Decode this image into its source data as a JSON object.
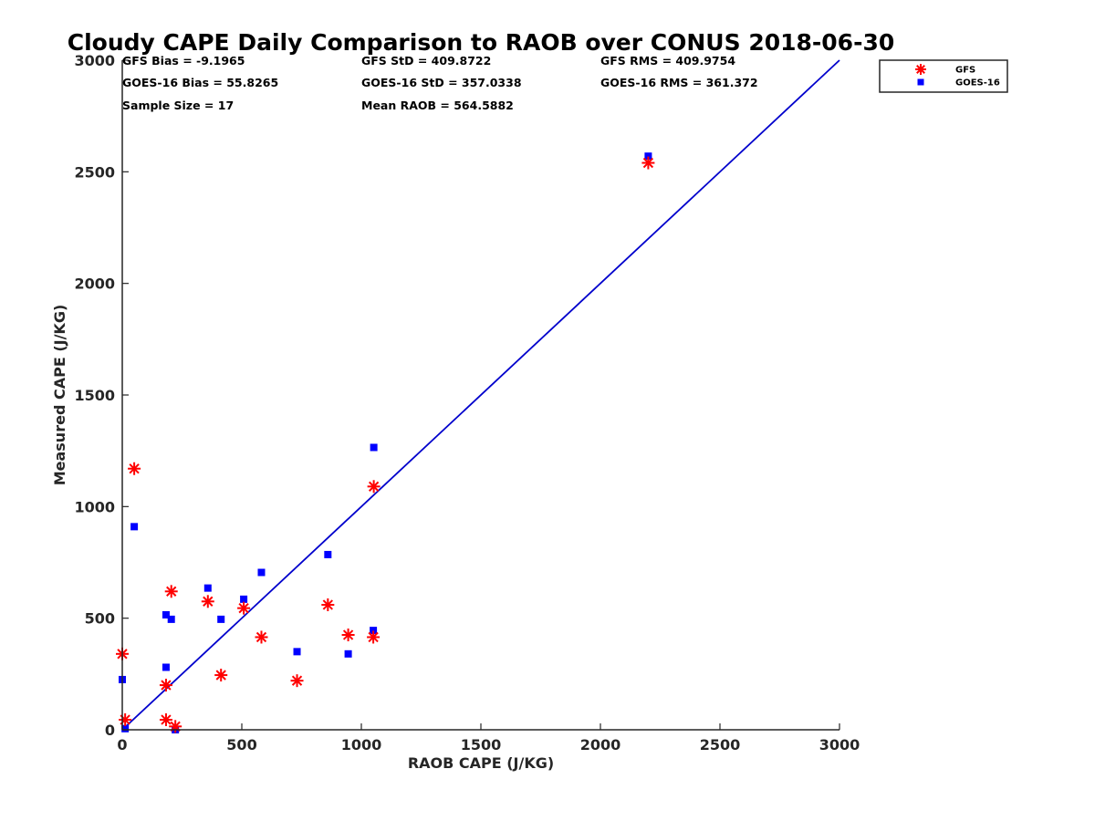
{
  "chart_data": {
    "type": "scatter",
    "title": "Cloudy CAPE Daily Comparison to RAOB over CONUS 2018-06-30",
    "xlabel": "RAOB CAPE (J/KG)",
    "ylabel": "Measured CAPE (J/KG)",
    "xlim": [
      0,
      3000
    ],
    "ylim": [
      0,
      3000
    ],
    "xticks": [
      "0",
      "500",
      "1000",
      "1500",
      "2000",
      "2500",
      "3000"
    ],
    "yticks": [
      "0",
      "500",
      "1000",
      "1500",
      "2000",
      "2500",
      "3000"
    ],
    "grid": false,
    "legend_position": "outside-top-right",
    "stats": [
      [
        "GFS Bias = -9.1965",
        "GFS StD = 409.8722",
        "GFS RMS = 409.9754"
      ],
      [
        "GOES-16 Bias = 55.8265",
        "GOES-16 StD = 357.0338",
        "GOES-16 RMS = 361.372"
      ],
      [
        "Sample Size = 17",
        "Mean RAOB = 564.5882",
        ""
      ]
    ],
    "reference_line": {
      "x": [
        0,
        3000
      ],
      "y": [
        0,
        3000
      ],
      "color": "#0000cc"
    },
    "series": [
      {
        "name": "GFS",
        "marker": "asterisk",
        "color": "#ff0000",
        "x": [
          0,
          12,
          50,
          183,
          183,
          205,
          222,
          358,
          413,
          508,
          582,
          731,
          860,
          945,
          1050,
          1052,
          2200
        ],
        "y": [
          340,
          45,
          1170,
          200,
          45,
          620,
          15,
          575,
          245,
          545,
          415,
          220,
          560,
          425,
          415,
          1090,
          2540
        ]
      },
      {
        "name": "GOES-16",
        "marker": "square",
        "color": "#0000ff",
        "x": [
          0,
          12,
          50,
          183,
          183,
          205,
          222,
          358,
          413,
          508,
          582,
          731,
          860,
          945,
          1050,
          1052,
          2200
        ],
        "y": [
          225,
          5,
          910,
          280,
          515,
          495,
          0,
          635,
          495,
          585,
          705,
          350,
          785,
          340,
          445,
          1265,
          2570
        ]
      }
    ]
  }
}
